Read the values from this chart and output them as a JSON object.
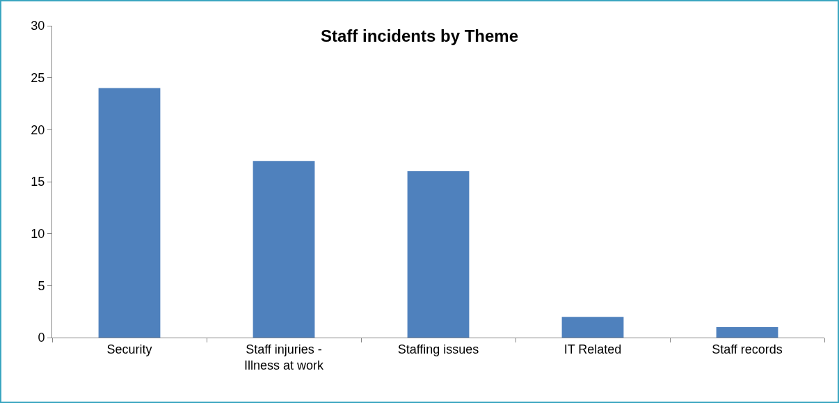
{
  "chart_data": {
    "type": "bar",
    "title": "Staff incidents by Theme",
    "categories": [
      "Security",
      "Staff injuries -\nIllness at work",
      "Staffing issues",
      "IT Related",
      "Staff records"
    ],
    "values": [
      24,
      17,
      16,
      2,
      1
    ],
    "color": "#4f81bd",
    "ylim": [
      0,
      30
    ],
    "yticks": [
      0,
      5,
      10,
      15,
      20,
      25,
      30
    ],
    "grid": false
  }
}
